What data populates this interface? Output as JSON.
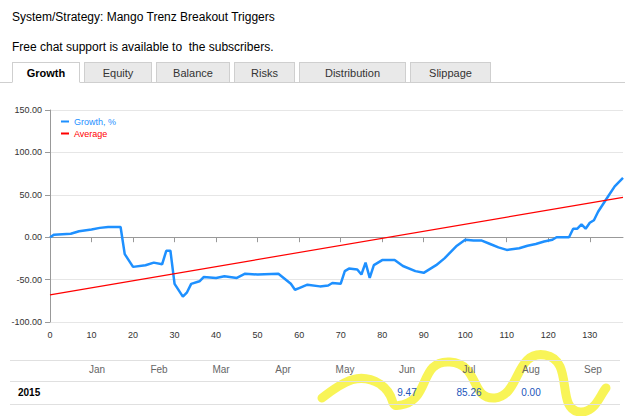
{
  "header": {
    "title": "System/Strategy: Mango Trenz Breakout Triggers",
    "subtitle": "Free chat support is available to  the subscribers."
  },
  "tabs": {
    "items": [
      "Growth",
      "Equity",
      "Balance",
      "Risks",
      "Distribution",
      "Slippage"
    ],
    "active": "Growth"
  },
  "chart_data": {
    "type": "line",
    "series": [
      {
        "name": "Growth, %",
        "color": "#1e90ff",
        "x": [
          0,
          1,
          5,
          7,
          10,
          12,
          14,
          17,
          18,
          20,
          23,
          25,
          27,
          28,
          29,
          30,
          32,
          33,
          34,
          36,
          37,
          40,
          42,
          45,
          47,
          50,
          55,
          58,
          59,
          60,
          62,
          65,
          67,
          68,
          70,
          71,
          72,
          74,
          75,
          76,
          77,
          78,
          80,
          83,
          85,
          88,
          90,
          93,
          95,
          96,
          98,
          100,
          102,
          104,
          106,
          108,
          110,
          113,
          115,
          117,
          119,
          121,
          122,
          125,
          126,
          127,
          128,
          129,
          130,
          131,
          132,
          134,
          136,
          138
        ],
        "values": [
          0,
          3,
          4,
          7,
          9,
          11,
          12,
          12,
          -20,
          -35,
          -33,
          -30,
          -32,
          -16,
          -16,
          -55,
          -70,
          -65,
          -55,
          -52,
          -47,
          -48,
          -46,
          -48,
          -43,
          -44,
          -43,
          -55,
          -62,
          -60,
          -56,
          -58,
          -57,
          -54,
          -55,
          -40,
          -37,
          -38,
          -44,
          -30,
          -48,
          -33,
          -27,
          -27,
          -34,
          -40,
          -42,
          -33,
          -25,
          -20,
          -10,
          -3,
          -4,
          -4,
          -8,
          -12,
          -15,
          -13,
          -10,
          -8,
          -5,
          -3,
          0,
          0,
          10,
          10,
          15,
          10,
          17,
          20,
          30,
          45,
          60,
          70
        ]
      },
      {
        "name": "Average",
        "color": "#ff0000",
        "x": [
          0,
          138
        ],
        "values": [
          -68,
          47
        ]
      }
    ],
    "xlim": [
      0,
      138
    ],
    "xticks": [
      0,
      10,
      20,
      30,
      40,
      50,
      60,
      70,
      80,
      90,
      100,
      110,
      120,
      130
    ],
    "ylim": [
      -100,
      150
    ],
    "yticks": [
      {
        "value": -100,
        "label": "-100.00"
      },
      {
        "value": -50,
        "label": "-50.00"
      },
      {
        "value": 0,
        "label": "0.00"
      },
      {
        "value": 50,
        "label": "50.00"
      },
      {
        "value": 100,
        "label": "100.00"
      },
      {
        "value": 150,
        "label": "150.00"
      }
    ],
    "grid": true,
    "legend": "upper left"
  },
  "table": {
    "columns": [
      "Jan",
      "Feb",
      "Mar",
      "Apr",
      "May",
      "Jun",
      "Jul",
      "Aug",
      "Sep"
    ],
    "rows": [
      {
        "year": "2015",
        "cells": [
          null,
          null,
          null,
          null,
          null,
          "9.47",
          "85.26",
          "0.00",
          null
        ]
      }
    ]
  }
}
